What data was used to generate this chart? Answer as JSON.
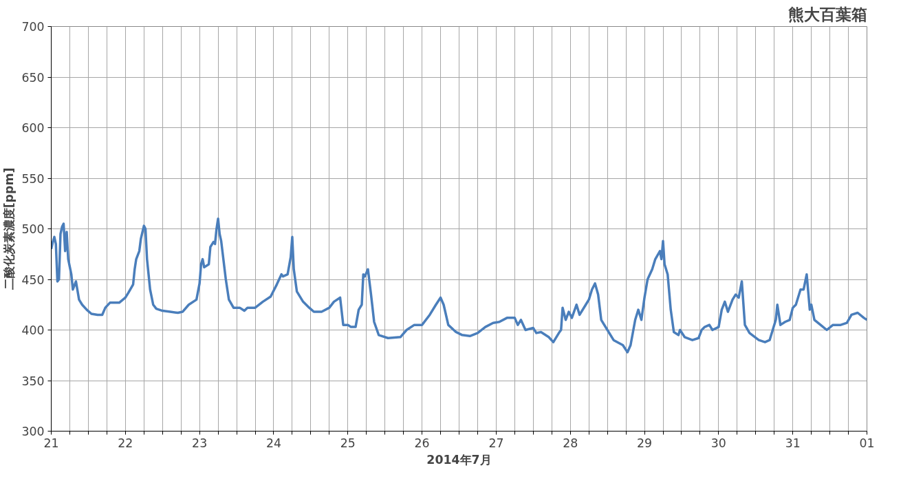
{
  "chart_data": {
    "type": "line",
    "title": "熊大百葉箱",
    "xlabel": "2014年7月",
    "ylabel": "二酸化炭素濃度[ppm]",
    "x": [
      "2014-07-21T00:00",
      "2014-07-21T00:30",
      "2014-07-21T01:00",
      "2014-07-21T01:30",
      "2014-07-21T02:00",
      "2014-07-21T02:30",
      "2014-07-21T03:00",
      "2014-07-21T03:30",
      "2014-07-21T04:00",
      "2014-07-21T04:30",
      "2014-07-21T05:00",
      "2014-07-21T05:30",
      "2014-07-21T06:30",
      "2014-07-21T07:00",
      "2014-07-21T08:00",
      "2014-07-21T09:00",
      "2014-07-21T10:00",
      "2014-07-21T11:30",
      "2014-07-21T13:00",
      "2014-07-21T15:00",
      "2014-07-21T16:30",
      "2014-07-21T17:30",
      "2014-07-21T19:00",
      "2014-07-21T22:00",
      "2014-07-22T00:00",
      "2014-07-22T01:00",
      "2014-07-22T02:30",
      "2014-07-22T03:00",
      "2014-07-22T03:30",
      "2014-07-22T04:30",
      "2014-07-22T05:00",
      "2014-07-22T06:00",
      "2014-07-22T06:30",
      "2014-07-22T07:00",
      "2014-07-22T08:00",
      "2014-07-22T09:00",
      "2014-07-22T10:00",
      "2014-07-22T12:00",
      "2014-07-22T14:30",
      "2014-07-22T17:00",
      "2014-07-22T18:30",
      "2014-07-22T20:30",
      "2014-07-22T23:00",
      "2014-07-23T00:00",
      "2014-07-23T00:30",
      "2014-07-23T01:00",
      "2014-07-23T01:30",
      "2014-07-23T03:00",
      "2014-07-23T03:30",
      "2014-07-23T04:30",
      "2014-07-23T05:00",
      "2014-07-23T05:30",
      "2014-07-23T06:00",
      "2014-07-23T06:30",
      "2014-07-23T07:00",
      "2014-07-23T08:30",
      "2014-07-23T09:30",
      "2014-07-23T11:00",
      "2014-07-23T13:00",
      "2014-07-23T14:30",
      "2014-07-23T15:30",
      "2014-07-23T18:00",
      "2014-07-23T20:30",
      "2014-07-23T23:00",
      "2014-07-24T01:00",
      "2014-07-24T02:30",
      "2014-07-24T03:00",
      "2014-07-24T04:30",
      "2014-07-24T05:30",
      "2014-07-24T06:00",
      "2014-07-24T06:30",
      "2014-07-24T07:30",
      "2014-07-24T09:30",
      "2014-07-24T11:30",
      "2014-07-24T13:00",
      "2014-07-24T15:30",
      "2014-07-24T18:00",
      "2014-07-24T19:30",
      "2014-07-24T21:30",
      "2014-07-24T22:30",
      "2014-07-25T00:00",
      "2014-07-25T01:00",
      "2014-07-25T02:30",
      "2014-07-25T03:30",
      "2014-07-25T04:30",
      "2014-07-25T05:00",
      "2014-07-25T05:30",
      "2014-07-25T06:30",
      "2014-07-25T07:30",
      "2014-07-25T08:30",
      "2014-07-25T10:00",
      "2014-07-25T13:00",
      "2014-07-25T17:00",
      "2014-07-25T19:00",
      "2014-07-25T21:30",
      "2014-07-26T00:00",
      "2014-07-26T02:30",
      "2014-07-26T04:30",
      "2014-07-26T06:00",
      "2014-07-26T07:00",
      "2014-07-26T08:30",
      "2014-07-26T11:00",
      "2014-07-26T13:00",
      "2014-07-26T15:30",
      "2014-07-26T18:00",
      "2014-07-26T20:30",
      "2014-07-26T23:00",
      "2014-07-27T01:00",
      "2014-07-27T03:30",
      "2014-07-27T06:00",
      "2014-07-27T07:00",
      "2014-07-27T08:00",
      "2014-07-27T09:30",
      "2014-07-27T12:00",
      "2014-07-27T13:00",
      "2014-07-27T14:30",
      "2014-07-27T17:00",
      "2014-07-27T18:30",
      "2014-07-27T20:30",
      "2014-07-27T21:00",
      "2014-07-27T21:30",
      "2014-07-27T22:30",
      "2014-07-27T23:30",
      "2014-07-28T00:30",
      "2014-07-28T02:00",
      "2014-07-28T03:00",
      "2014-07-28T05:00",
      "2014-07-28T06:00",
      "2014-07-28T07:00",
      "2014-07-28T08:00",
      "2014-07-28T09:00",
      "2014-07-28T10:00",
      "2014-07-28T12:00",
      "2014-07-28T14:00",
      "2014-07-28T17:00",
      "2014-07-28T18:30",
      "2014-07-28T19:30",
      "2014-07-28T21:00",
      "2014-07-28T22:00",
      "2014-07-28T23:00",
      "2014-07-29T00:00",
      "2014-07-29T01:00",
      "2014-07-29T02:30",
      "2014-07-29T03:30",
      "2014-07-29T05:00",
      "2014-07-29T05:30",
      "2014-07-29T06:00",
      "2014-07-29T06:30",
      "2014-07-29T07:30",
      "2014-07-29T08:30",
      "2014-07-29T09:30",
      "2014-07-29T11:00",
      "2014-07-29T11:30",
      "2014-07-29T13:00",
      "2014-07-29T15:30",
      "2014-07-29T17:30",
      "2014-07-29T18:30",
      "2014-07-29T19:30",
      "2014-07-29T21:00",
      "2014-07-29T22:00",
      "2014-07-30T00:00",
      "2014-07-30T01:00",
      "2014-07-30T02:00",
      "2014-07-30T03:00",
      "2014-07-30T04:30",
      "2014-07-30T05:30",
      "2014-07-30T06:30",
      "2014-07-30T07:30",
      "2014-07-30T08:30",
      "2014-07-30T10:00",
      "2014-07-30T13:00",
      "2014-07-30T15:00",
      "2014-07-30T16:30",
      "2014-07-30T17:30",
      "2014-07-30T18:30",
      "2014-07-30T19:00",
      "2014-07-30T20:00",
      "2014-07-30T21:30",
      "2014-07-30T23:00",
      "2014-07-31T00:00",
      "2014-07-31T01:00",
      "2014-07-31T02:30",
      "2014-07-31T03:30",
      "2014-07-31T04:30",
      "2014-07-31T05:30",
      "2014-07-31T06:00",
      "2014-07-31T07:00",
      "2014-07-31T09:00",
      "2014-07-31T11:00",
      "2014-07-31T13:00",
      "2014-07-31T15:30",
      "2014-07-31T17:30",
      "2014-07-31T19:00",
      "2014-07-31T21:00",
      "2014-07-31T23:00",
      "2014-08-01T00:00"
    ],
    "series": [
      {
        "color": "#4a7ebb",
        "values": [
          480,
          487,
          492,
          485,
          448,
          450,
          495,
          502,
          505,
          478,
          497,
          470,
          455,
          440,
          448,
          430,
          425,
          420,
          416,
          415,
          415,
          422,
          427,
          427,
          432,
          437,
          445,
          460,
          470,
          478,
          490,
          503,
          500,
          470,
          440,
          425,
          421,
          419,
          418,
          417,
          418,
          425,
          430,
          446,
          465,
          470,
          462,
          465,
          482,
          487,
          485,
          500,
          510,
          495,
          488,
          450,
          430,
          422,
          422,
          419,
          422,
          422,
          428,
          433,
          445,
          455,
          453,
          455,
          472,
          492,
          460,
          438,
          428,
          422,
          418,
          418,
          422,
          428,
          432,
          405,
          405,
          403,
          403,
          420,
          425,
          455,
          453,
          460,
          435,
          408,
          395,
          392,
          393,
          400,
          405,
          405,
          415,
          425,
          432,
          425,
          405,
          398,
          395,
          394,
          397,
          403,
          407,
          408,
          412,
          412,
          405,
          410,
          400,
          402,
          397,
          398,
          393,
          388,
          398,
          400,
          422,
          410,
          418,
          412,
          425,
          415,
          425,
          430,
          440,
          446,
          435,
          410,
          400,
          390,
          385,
          378,
          385,
          410,
          420,
          410,
          432,
          450,
          460,
          470,
          478,
          470,
          488,
          465,
          455,
          420,
          398,
          395,
          400,
          393,
          390,
          392,
          400,
          403,
          405,
          400,
          403,
          420,
          428,
          418,
          430,
          435,
          432,
          448,
          405,
          397,
          390,
          388,
          390,
          400,
          410,
          425,
          405,
          408,
          410,
          422,
          425,
          440,
          440,
          455,
          420,
          425,
          410,
          405,
          400,
          405,
          405,
          407,
          415,
          417,
          412,
          410
        ]
      }
    ],
    "xlim": [
      "2014-07-21T00:00",
      "2014-08-01T00:00"
    ],
    "xticks": [
      {
        "value": "2014-07-21T00:00",
        "label": "21"
      },
      {
        "value": "2014-07-21T06:00",
        "label": null
      },
      {
        "value": "2014-07-21T12:00",
        "label": null
      },
      {
        "value": "2014-07-21T18:00",
        "label": null
      },
      {
        "value": "2014-07-22T00:00",
        "label": "22"
      },
      {
        "value": "2014-07-22T06:00",
        "label": null
      },
      {
        "value": "2014-07-22T12:00",
        "label": null
      },
      {
        "value": "2014-07-22T18:00",
        "label": null
      },
      {
        "value": "2014-07-23T00:00",
        "label": "23"
      },
      {
        "value": "2014-07-23T06:00",
        "label": null
      },
      {
        "value": "2014-07-23T12:00",
        "label": null
      },
      {
        "value": "2014-07-23T18:00",
        "label": null
      },
      {
        "value": "2014-07-24T00:00",
        "label": "24"
      },
      {
        "value": "2014-07-24T06:00",
        "label": null
      },
      {
        "value": "2014-07-24T12:00",
        "label": null
      },
      {
        "value": "2014-07-24T18:00",
        "label": null
      },
      {
        "value": "2014-07-25T00:00",
        "label": "25"
      },
      {
        "value": "2014-07-25T06:00",
        "label": null
      },
      {
        "value": "2014-07-25T12:00",
        "label": null
      },
      {
        "value": "2014-07-25T18:00",
        "label": null
      },
      {
        "value": "2014-07-26T00:00",
        "label": "26"
      },
      {
        "value": "2014-07-26T06:00",
        "label": null
      },
      {
        "value": "2014-07-26T12:00",
        "label": null
      },
      {
        "value": "2014-07-26T18:00",
        "label": null
      },
      {
        "value": "2014-07-27T00:00",
        "label": "27"
      },
      {
        "value": "2014-07-27T06:00",
        "label": null
      },
      {
        "value": "2014-07-27T12:00",
        "label": null
      },
      {
        "value": "2014-07-27T18:00",
        "label": null
      },
      {
        "value": "2014-07-28T00:00",
        "label": "28"
      },
      {
        "value": "2014-07-28T06:00",
        "label": null
      },
      {
        "value": "2014-07-28T12:00",
        "label": null
      },
      {
        "value": "2014-07-28T18:00",
        "label": null
      },
      {
        "value": "2014-07-29T00:00",
        "label": "29"
      },
      {
        "value": "2014-07-29T06:00",
        "label": null
      },
      {
        "value": "2014-07-29T12:00",
        "label": null
      },
      {
        "value": "2014-07-29T18:00",
        "label": null
      },
      {
        "value": "2014-07-30T00:00",
        "label": "30"
      },
      {
        "value": "2014-07-30T06:00",
        "label": null
      },
      {
        "value": "2014-07-30T12:00",
        "label": null
      },
      {
        "value": "2014-07-30T18:00",
        "label": null
      },
      {
        "value": "2014-07-31T00:00",
        "label": "31"
      },
      {
        "value": "2014-07-31T06:00",
        "label": null
      },
      {
        "value": "2014-07-31T12:00",
        "label": null
      },
      {
        "value": "2014-07-31T18:00",
        "label": null
      },
      {
        "value": "2014-08-01T00:00",
        "label": "01"
      }
    ],
    "ylim": [
      300,
      700
    ],
    "yticks": [
      300,
      350,
      400,
      450,
      500,
      550,
      600,
      650,
      700
    ],
    "grid": true,
    "line_style": "solid"
  }
}
